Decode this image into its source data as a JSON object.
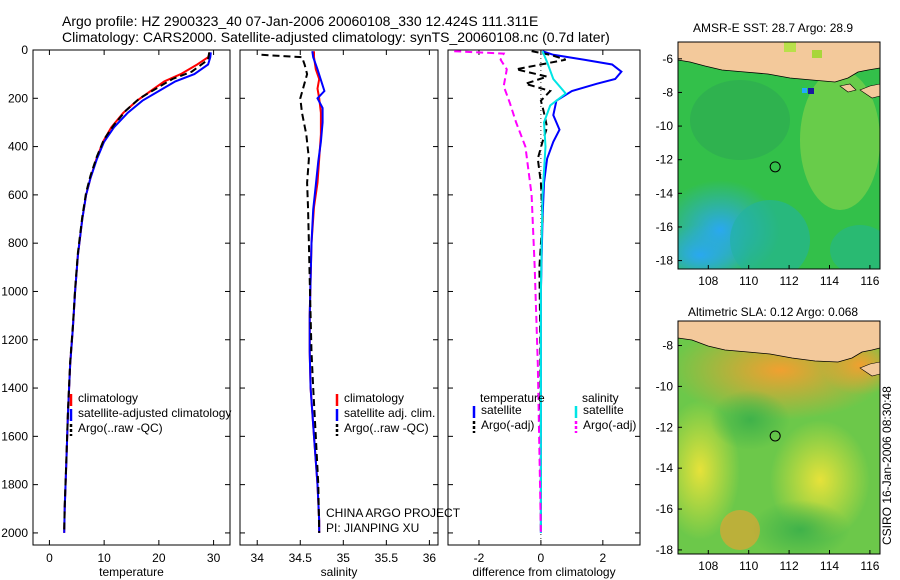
{
  "title_line1": "Argo profile: HZ 2900323_40 07-Jan-2006 20060108_330 12.424S 111.311E",
  "title_line2": "Climatology: CARS2000. Satellite-adjusted climatology: synTS_20060108.nc (0.7d later)",
  "credit": "CSIRO 16-Jan-2006 08:30:48",
  "colors": {
    "climatology": "#ff0000",
    "satellite": "#0000ff",
    "argo": "#000000",
    "sal_sat": "#00e5e5",
    "sal_argo": "#ff00ff"
  },
  "chart_data": [
    {
      "type": "line",
      "xlabel": "temperature",
      "xlim": [
        -3,
        33
      ],
      "ylim": [
        2050,
        0
      ],
      "xticks": [
        0,
        10,
        20,
        30
      ],
      "yticks": [
        0,
        200,
        400,
        600,
        800,
        1000,
        1200,
        1400,
        1600,
        1800,
        2000
      ],
      "legend": {
        "position": "bottom-right",
        "entries": [
          "climatology",
          "satellite-adjusted climatology",
          "Argo(..raw -QC)"
        ]
      },
      "series": [
        {
          "name": "climatology",
          "color": "#ff0000",
          "style": "solid",
          "x": [
            29.4,
            29.0,
            27.0,
            24.0,
            21.0,
            18.5,
            16.0,
            13.5,
            11.3,
            9.8,
            8.6,
            7.5,
            6.7,
            6.0,
            5.2,
            4.7,
            4.3,
            3.8,
            3.4,
            3.1,
            2.8,
            2.7
          ],
          "y": [
            10,
            30,
            60,
            100,
            130,
            170,
            210,
            260,
            320,
            380,
            450,
            530,
            600,
            700,
            850,
            1000,
            1150,
            1300,
            1500,
            1700,
            1900,
            2000
          ]
        },
        {
          "name": "satellite-adjusted climatology",
          "color": "#0000ff",
          "style": "solid",
          "x": [
            29.5,
            29.4,
            29.0,
            26.5,
            23.0,
            20.0,
            17.0,
            14.3,
            11.8,
            10.0,
            8.7,
            7.5,
            6.7,
            6.0,
            5.2,
            4.7,
            4.3,
            3.8,
            3.4,
            3.1,
            2.8,
            2.7
          ],
          "y": [
            10,
            30,
            60,
            100,
            130,
            170,
            210,
            260,
            320,
            380,
            450,
            530,
            600,
            700,
            850,
            1000,
            1150,
            1300,
            1500,
            1700,
            1900,
            2000
          ]
        },
        {
          "name": "Argo(..raw -QC)",
          "color": "#000000",
          "style": "dashed",
          "x": [
            29.2,
            29.0,
            26.0,
            22.5,
            19.5,
            16.5,
            14.0,
            11.8,
            10.0,
            8.7,
            7.5,
            6.7,
            6.0,
            5.2,
            4.7,
            4.3,
            3.8,
            3.4,
            3.1,
            2.8,
            2.7
          ],
          "y": [
            10,
            40,
            90,
            120,
            160,
            200,
            250,
            310,
            370,
            440,
            520,
            590,
            690,
            840,
            990,
            1140,
            1290,
            1490,
            1690,
            1890,
            1990
          ]
        }
      ]
    },
    {
      "type": "line",
      "xlabel": "salinity",
      "xlim": [
        33.8,
        36.1
      ],
      "ylim": [
        2050,
        0
      ],
      "xticks": [
        34,
        34.5,
        35,
        35.5,
        36
      ],
      "xticklabels": [
        "34",
        "34.5",
        "35",
        "35.5",
        "36"
      ],
      "legend": {
        "position": "bottom-right",
        "entries": [
          "climatology",
          "satellite adj. clim.",
          "Argo(..raw -QC)"
        ]
      },
      "annotations": [
        "CHINA ARGO PROJECT",
        "PI: JIANPING XU"
      ],
      "series": [
        {
          "name": "climatology",
          "color": "#ff0000",
          "style": "solid",
          "x": [
            34.66,
            34.66,
            34.68,
            34.72,
            34.7,
            34.72,
            34.74,
            34.74,
            34.72,
            34.7,
            34.66,
            34.63,
            34.62,
            34.61,
            34.61,
            34.62,
            34.66,
            34.7,
            34.72,
            34.72
          ],
          "y": [
            5,
            30,
            80,
            120,
            160,
            200,
            260,
            350,
            450,
            550,
            650,
            800,
            950,
            1100,
            1250,
            1400,
            1600,
            1800,
            1950,
            2000
          ]
        },
        {
          "name": "satellite adj. clim.",
          "color": "#0000ff",
          "style": "solid",
          "x": [
            34.64,
            34.65,
            34.7,
            34.78,
            34.7,
            34.76,
            34.76,
            34.74,
            34.71,
            34.68,
            34.65,
            34.63,
            34.62,
            34.61,
            34.61,
            34.62,
            34.66,
            34.7,
            34.72,
            34.72
          ],
          "y": [
            5,
            30,
            80,
            170,
            200,
            240,
            300,
            380,
            460,
            560,
            660,
            800,
            950,
            1100,
            1250,
            1400,
            1600,
            1800,
            1950,
            2000
          ]
        },
        {
          "name": "Argo(..raw -QC)",
          "color": "#000000",
          "style": "dashed",
          "x": [
            34.05,
            34.52,
            34.55,
            34.58,
            34.54,
            34.5,
            34.52,
            34.57,
            34.6,
            34.58,
            34.59,
            34.6,
            34.61,
            34.62,
            34.63,
            34.65,
            34.68,
            34.71,
            34.72
          ],
          "y": [
            20,
            30,
            60,
            100,
            150,
            200,
            260,
            350,
            450,
            550,
            650,
            800,
            950,
            1100,
            1250,
            1400,
            1600,
            1800,
            2000
          ]
        }
      ]
    },
    {
      "type": "line",
      "xlabel": "difference from climatology",
      "xlim": [
        -3.0,
        3.2
      ],
      "ylim": [
        2050,
        0
      ],
      "xticks": [
        -2,
        0,
        2
      ],
      "legend": {
        "position": "bottom",
        "entries": [
          "temperature",
          "satellite",
          "Argo(-adj)",
          "salinity",
          "satellite",
          "Argo(-adj)"
        ]
      },
      "series": [
        {
          "name": "temperature satellite",
          "color": "#0000ff",
          "style": "solid",
          "x": [
            0.05,
            0.4,
            1.4,
            2.3,
            2.6,
            2.4,
            1.8,
            1.0,
            0.5,
            0.4,
            0.6,
            0.4,
            0.2,
            0.1,
            0.05,
            0.0,
            0.0
          ],
          "y": [
            5,
            20,
            40,
            60,
            90,
            120,
            140,
            170,
            210,
            270,
            330,
            380,
            450,
            550,
            700,
            1000,
            2000
          ]
        },
        {
          "name": "temperature Argo(-adj)",
          "color": "#000000",
          "style": "dashed",
          "x": [
            -0.3,
            0.3,
            0.8,
            -0.8,
            0.2,
            -0.5,
            0.3,
            0.0,
            0.1,
            0.2,
            0.05,
            -0.1,
            0.0,
            0.05,
            -0.05,
            -0.02,
            0.0
          ],
          "y": [
            5,
            20,
            40,
            80,
            110,
            140,
            170,
            210,
            260,
            320,
            380,
            450,
            550,
            700,
            900,
            1200,
            2000
          ]
        },
        {
          "name": "salinity satellite",
          "color": "#00e5e5",
          "style": "solid",
          "x": [
            0.05,
            0.2,
            0.4,
            0.8,
            0.3,
            0.1,
            0.15,
            0.05,
            0.0,
            0.0
          ],
          "y": [
            5,
            50,
            120,
            180,
            230,
            300,
            400,
            600,
            1000,
            2000
          ]
        },
        {
          "name": "salinity Argo(-adj)",
          "color": "#ff00ff",
          "style": "dashed",
          "x": [
            -2.8,
            -1.2,
            -1.3,
            -1.1,
            -1.2,
            -1.0,
            -0.8,
            -0.5,
            -0.3,
            -0.2,
            -0.1,
            0.0
          ],
          "y": [
            5,
            15,
            40,
            80,
            150,
            220,
            300,
            400,
            600,
            900,
            1300,
            2000
          ]
        }
      ]
    },
    {
      "type": "heatmap",
      "title": "AMSR-E SST: 28.7  Argo: 28.9",
      "xlim": [
        106.5,
        116.5
      ],
      "ylim": [
        -18.5,
        -5
      ],
      "xticks": [
        108,
        110,
        112,
        114,
        116
      ],
      "yticks": [
        -6,
        -8,
        -10,
        -12,
        -14,
        -16,
        -18
      ],
      "marker": {
        "lon": 111.311,
        "lat": -12.424
      }
    },
    {
      "type": "heatmap",
      "title": "Altimetric SLA: 0.12  Argo: 0.068",
      "xlim": [
        106.5,
        116.5
      ],
      "ylim": [
        -18.2,
        -6.8
      ],
      "xticks": [
        108,
        110,
        112,
        114,
        116
      ],
      "yticks": [
        -8,
        -10,
        -12,
        -14,
        -16,
        -18
      ],
      "marker": {
        "lon": 111.311,
        "lat": -12.424
      }
    }
  ]
}
